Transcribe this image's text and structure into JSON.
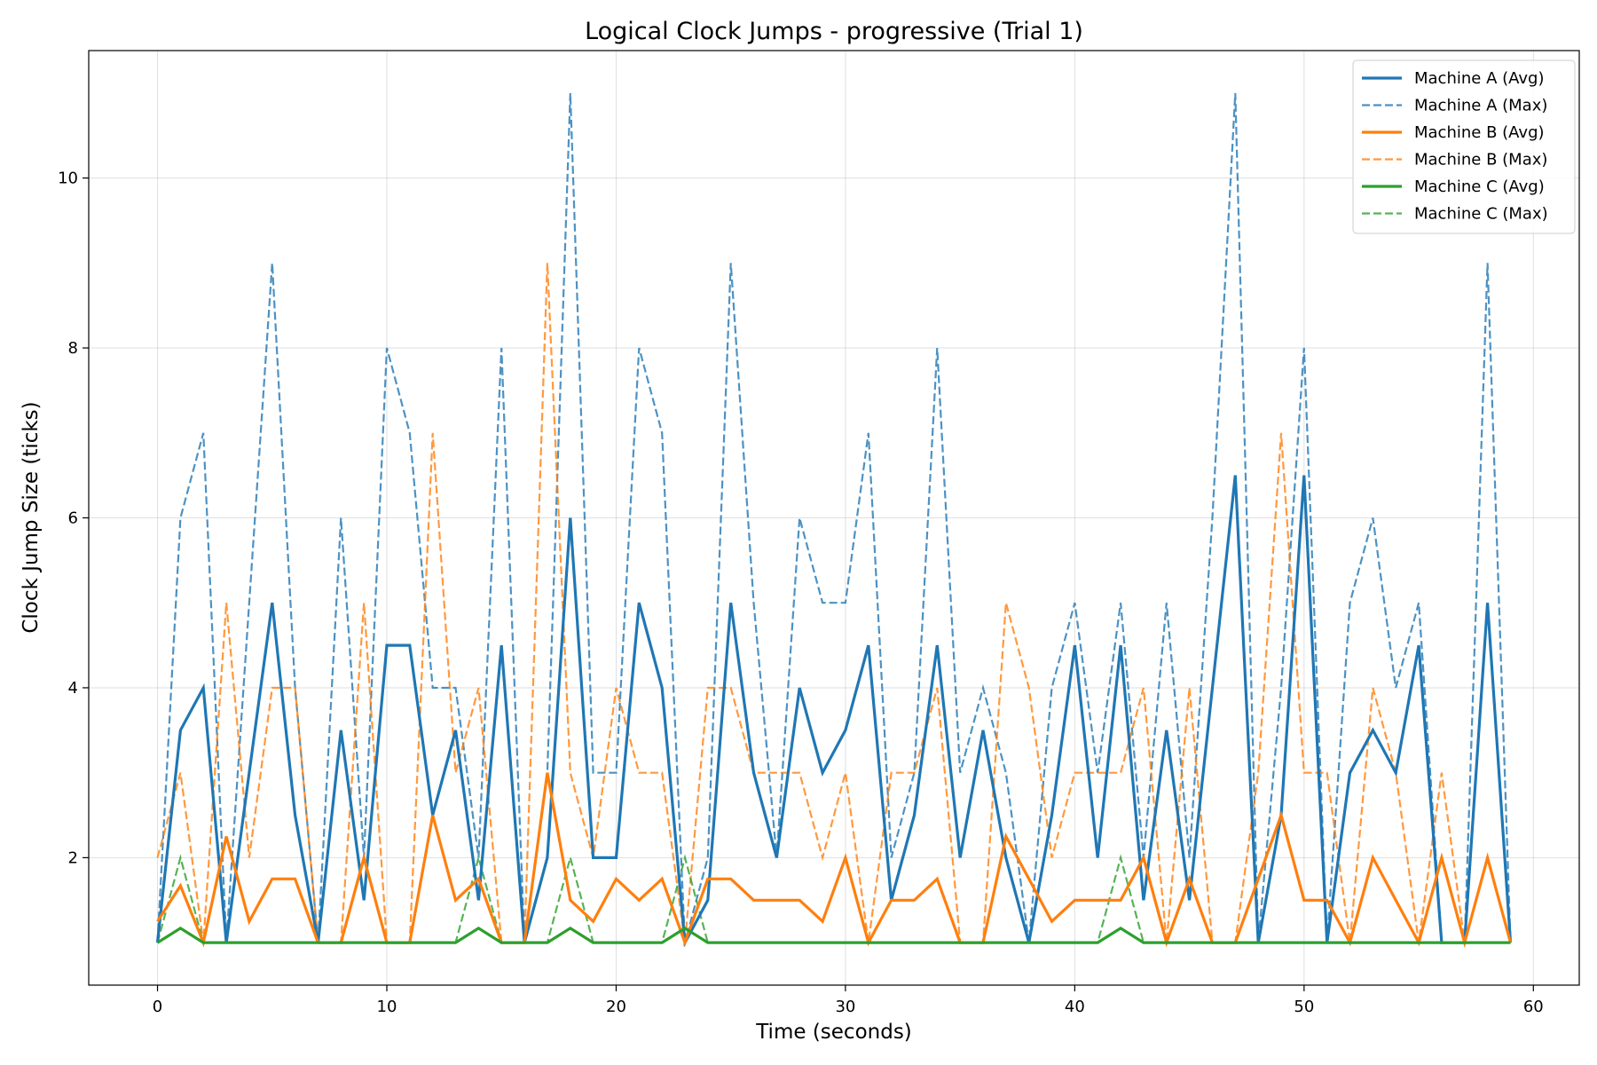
{
  "chart_data": {
    "type": "line",
    "title": "Logical Clock Jumps - progressive (Trial 1)",
    "xlabel": "Time (seconds)",
    "ylabel": "Clock Jump Size (ticks)",
    "xlim": [
      -3,
      62
    ],
    "ylim": [
      0.5,
      11.5
    ],
    "xticks": [
      0,
      10,
      20,
      30,
      40,
      50,
      60
    ],
    "yticks": [
      2,
      4,
      6,
      8,
      10
    ],
    "grid": true,
    "legend_position": "top-right",
    "x": [
      0,
      1,
      2,
      3,
      4,
      5,
      6,
      7,
      8,
      9,
      10,
      11,
      12,
      13,
      14,
      15,
      16,
      17,
      18,
      19,
      20,
      21,
      22,
      23,
      24,
      25,
      26,
      27,
      28,
      29,
      30,
      31,
      32,
      33,
      34,
      35,
      36,
      37,
      38,
      39,
      40,
      41,
      42,
      43,
      44,
      45,
      46,
      47,
      48,
      49,
      50,
      51,
      52,
      53,
      54,
      55,
      56,
      57,
      58,
      59
    ],
    "series": [
      {
        "name": "Machine A (Avg)",
        "color": "#1f77b4",
        "style": "solid",
        "values": [
          1,
          3.5,
          4,
          1,
          3,
          5,
          2.5,
          1,
          3.5,
          1.5,
          4.5,
          4.5,
          2.5,
          3.5,
          1.5,
          4.5,
          1,
          2,
          6,
          2,
          2,
          5,
          4,
          1,
          1.5,
          5,
          3,
          2,
          4,
          3,
          3.5,
          4.5,
          1.5,
          2.5,
          4.5,
          2,
          3.5,
          2,
          1,
          2.5,
          4.5,
          2,
          4.5,
          1.5,
          3.5,
          1.5,
          4,
          6.5,
          1,
          2.5,
          6.5,
          1,
          3,
          3.5,
          3,
          4.5,
          1,
          1,
          5,
          1
        ]
      },
      {
        "name": "Machine A (Max)",
        "color": "#1f77b4",
        "style": "dashed",
        "values": [
          1,
          6,
          7,
          1,
          5,
          9,
          4,
          1,
          6,
          2,
          8,
          7,
          4,
          4,
          2,
          8,
          1,
          3,
          11,
          3,
          3,
          8,
          7,
          1,
          2,
          9,
          5,
          2,
          6,
          5,
          5,
          7,
          2,
          3,
          8,
          3,
          4,
          3,
          1,
          4,
          5,
          3,
          5,
          2,
          5,
          2,
          6,
          11,
          1,
          4,
          8,
          1,
          5,
          6,
          4,
          5,
          1,
          1,
          9,
          1
        ]
      },
      {
        "name": "Machine B (Avg)",
        "color": "#ff7f0e",
        "style": "solid",
        "values": [
          1.25,
          1.67,
          1,
          2.25,
          1.25,
          1.75,
          1.75,
          1,
          1,
          2,
          1,
          1,
          2.5,
          1.5,
          1.75,
          1,
          1,
          3,
          1.5,
          1.25,
          1.75,
          1.5,
          1.75,
          1,
          1.75,
          1.75,
          1.5,
          1.5,
          1.5,
          1.25,
          2,
          1,
          1.5,
          1.5,
          1.75,
          1,
          1,
          2.25,
          1.75,
          1.25,
          1.5,
          1.5,
          1.5,
          2,
          1,
          1.75,
          1,
          1,
          1.75,
          2.5,
          1.5,
          1.5,
          1,
          2,
          1.5,
          1,
          2,
          1,
          2,
          1
        ]
      },
      {
        "name": "Machine B (Max)",
        "color": "#ff7f0e",
        "style": "dashed",
        "values": [
          2,
          3,
          1,
          5,
          2,
          4,
          4,
          1,
          1,
          5,
          1,
          1,
          7,
          3,
          4,
          1,
          1,
          9,
          3,
          2,
          4,
          3,
          3,
          1,
          4,
          4,
          3,
          3,
          3,
          2,
          3,
          1,
          3,
          3,
          4,
          1,
          1,
          5,
          4,
          2,
          3,
          3,
          3,
          4,
          1,
          4,
          1,
          1,
          3,
          7,
          3,
          3,
          1,
          4,
          3,
          1,
          3,
          1,
          5,
          1
        ]
      },
      {
        "name": "Machine C (Avg)",
        "color": "#2ca02c",
        "style": "solid",
        "values": [
          1,
          1.17,
          1,
          1,
          1,
          1,
          1,
          1,
          1,
          1,
          1,
          1,
          1,
          1,
          1.17,
          1,
          1,
          1,
          1.17,
          1,
          1,
          1,
          1,
          1.17,
          1,
          1,
          1,
          1,
          1,
          1,
          1,
          1,
          1,
          1,
          1,
          1,
          1,
          1,
          1,
          1,
          1,
          1,
          1.17,
          1,
          1,
          1,
          1,
          1,
          1,
          1,
          1,
          1,
          1,
          1,
          1,
          1,
          1,
          1,
          1,
          1
        ]
      },
      {
        "name": "Machine C (Max)",
        "color": "#2ca02c",
        "style": "dashed",
        "values": [
          1,
          2,
          1,
          1,
          1,
          1,
          1,
          1,
          1,
          1,
          1,
          1,
          1,
          1,
          2,
          1,
          1,
          1,
          2,
          1,
          1,
          1,
          1,
          2,
          1,
          1,
          1,
          1,
          1,
          1,
          1,
          1,
          1,
          1,
          1,
          1,
          1,
          1,
          1,
          1,
          1,
          1,
          2,
          1,
          1,
          1,
          1,
          1,
          1,
          1,
          1,
          1,
          1,
          1,
          1,
          1,
          1,
          1,
          1,
          1
        ]
      }
    ]
  }
}
